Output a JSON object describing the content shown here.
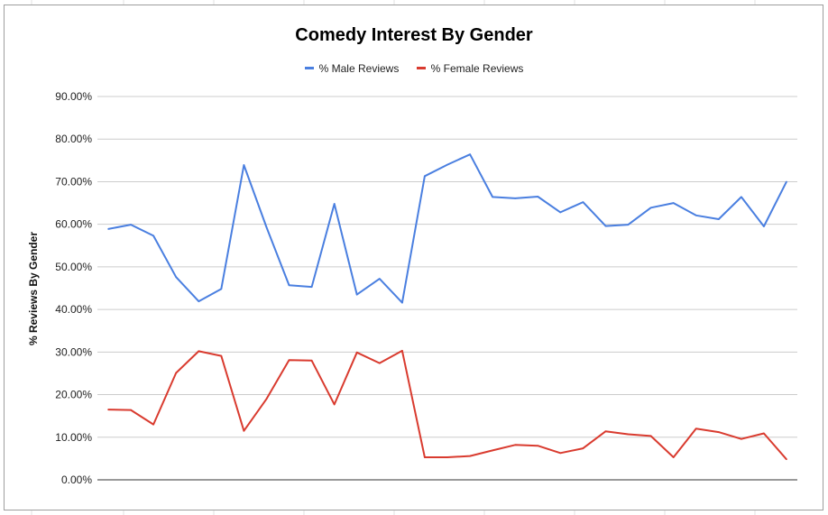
{
  "chart_data": {
    "type": "line",
    "title": "Comedy Interest By Gender",
    "xlabel": "",
    "ylabel": "% Reviews By Gender",
    "ylim": [
      0,
      90
    ],
    "y_ticks": [
      "0.00%",
      "10.00%",
      "20.00%",
      "30.00%",
      "40.00%",
      "50.00%",
      "60.00%",
      "70.00%",
      "80.00%",
      "90.00%"
    ],
    "grid": true,
    "legend_position": "top",
    "series": [
      {
        "name": "% Male Reviews",
        "color": "#4a7fe0",
        "values": [
          58.9,
          59.9,
          57.3,
          47.6,
          41.9,
          44.8,
          73.9,
          59.3,
          45.7,
          45.3,
          64.8,
          43.5,
          47.2,
          41.6,
          71.3,
          74.0,
          76.4,
          66.4,
          66.1,
          66.5,
          62.8,
          65.2,
          59.6,
          59.9,
          63.9,
          65.0,
          62.1,
          61.2,
          66.4,
          59.5,
          70.0
        ]
      },
      {
        "name": "% Female Reviews",
        "color": "#d93b2f",
        "values": [
          16.5,
          16.4,
          13.0,
          25.1,
          30.2,
          29.1,
          11.5,
          19.0,
          28.1,
          28.0,
          17.7,
          29.9,
          27.4,
          30.3,
          5.3,
          5.3,
          5.6,
          6.9,
          8.2,
          8.0,
          6.3,
          7.4,
          11.4,
          10.7,
          10.3,
          5.3,
          12.0,
          11.2,
          9.6,
          10.9,
          4.8
        ]
      }
    ]
  }
}
